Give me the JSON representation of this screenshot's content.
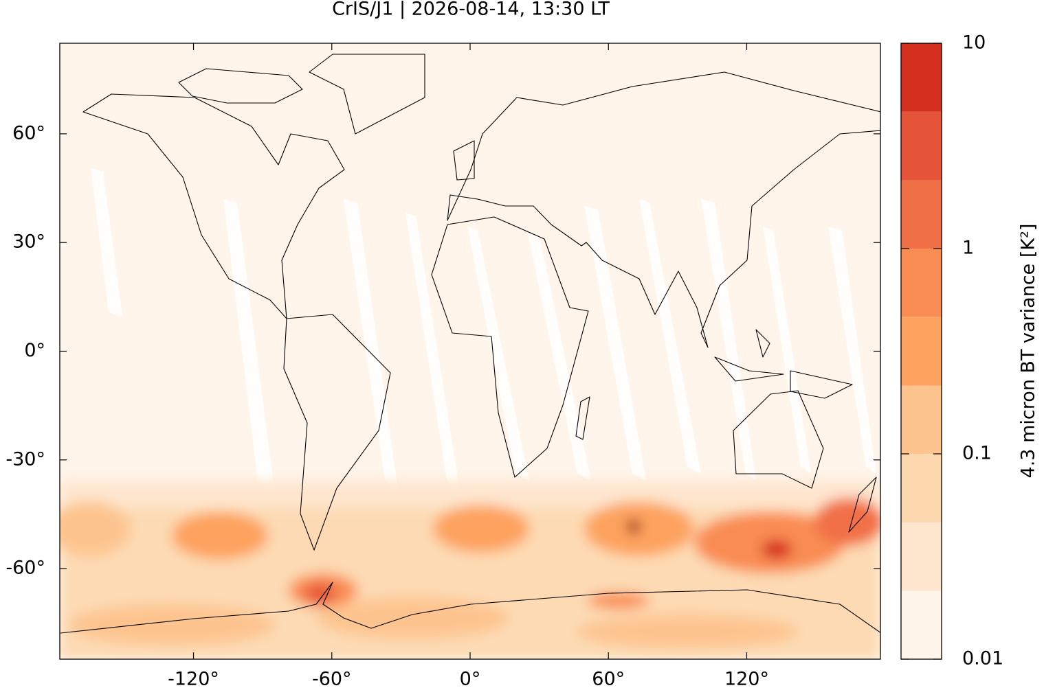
{
  "map": {
    "title": "CrIS/J1 | 2026-08-14, 13:30 LT",
    "xlim": [
      -178,
      178
    ],
    "ylim": [
      -85,
      85
    ],
    "xticks": [
      {
        "value": -120,
        "label": "-120°"
      },
      {
        "value": -60,
        "label": "-60°"
      },
      {
        "value": 0,
        "label": "0°"
      },
      {
        "value": 60,
        "label": "60°"
      },
      {
        "value": 120,
        "label": "120°"
      }
    ],
    "yticks": [
      {
        "value": 60,
        "label": "60°"
      },
      {
        "value": 30,
        "label": "30°"
      },
      {
        "value": 0,
        "label": "0°"
      },
      {
        "value": -30,
        "label": "-30°"
      },
      {
        "value": -60,
        "label": "-60°"
      }
    ],
    "colorbar": {
      "label": "4.3 micron BT variance [K²]",
      "log": true,
      "lim": [
        0.01,
        10
      ],
      "ticks": [
        0.01,
        0.1,
        1,
        10
      ],
      "levels": [
        0.01,
        0.0215,
        0.0464,
        0.1,
        0.215,
        0.464,
        1,
        2.15,
        4.64,
        10
      ],
      "colors": [
        "#fff5eb",
        "#fee6ce",
        "#fdd7ad",
        "#fdc48f",
        "#fda35f",
        "#f98c52",
        "#f16f46",
        "#e55439",
        "#d42f1f",
        "#960000"
      ]
    }
  }
}
